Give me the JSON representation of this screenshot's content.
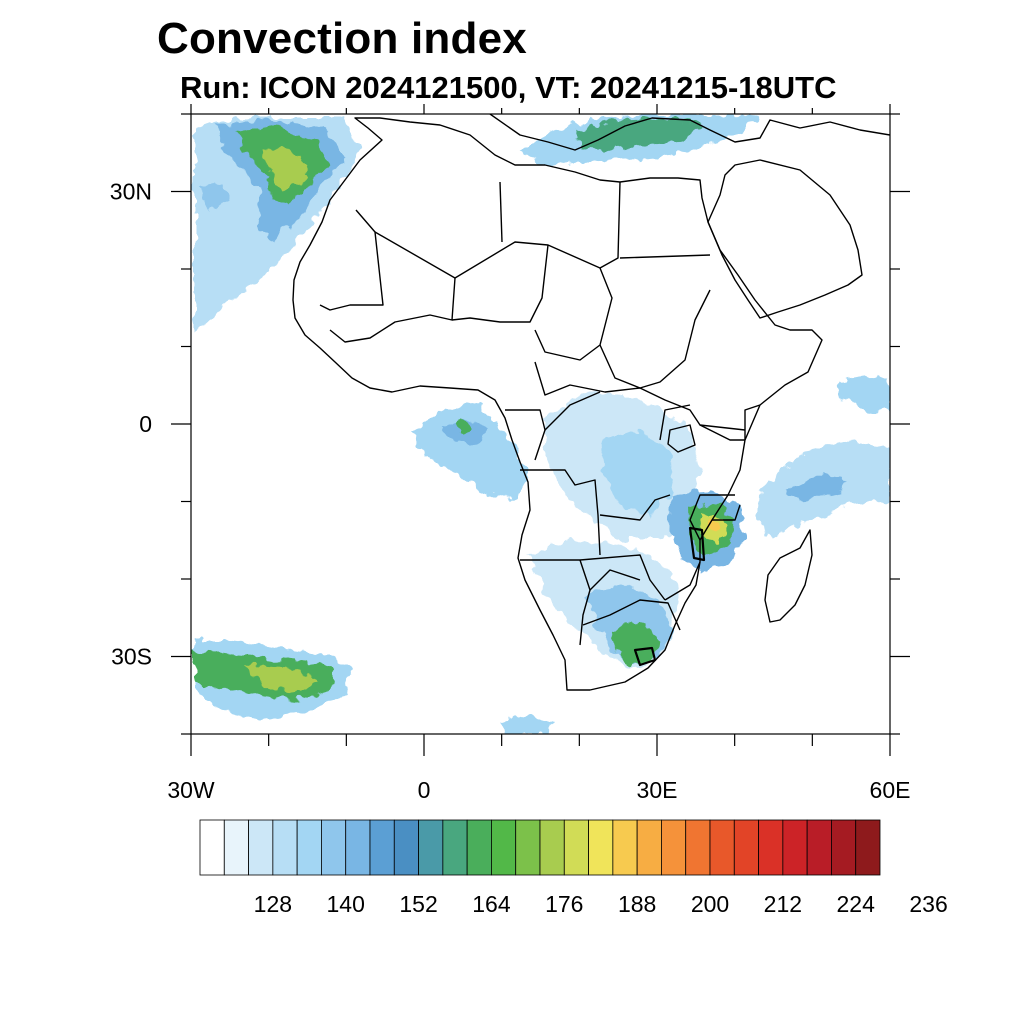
{
  "title": "Convection index",
  "subtitle": "Run: ICON 2024121500,  VT: 20241215-18UTC",
  "axes": {
    "lon_range": [
      -30,
      60
    ],
    "lat_range": [
      -40,
      40
    ],
    "x_tick_labels": [
      {
        "lon": -30,
        "label": "30W"
      },
      {
        "lon": 0,
        "label": "0"
      },
      {
        "lon": 30,
        "label": "30E"
      },
      {
        "lon": 60,
        "label": "60E"
      }
    ],
    "y_tick_labels": [
      {
        "lat": 30,
        "label": "30N"
      },
      {
        "lat": 0,
        "label": "0"
      },
      {
        "lat": -30,
        "label": "30S"
      }
    ]
  },
  "colorbar": {
    "colors": [
      "#ffffff",
      "#e8f4fb",
      "#cce7f7",
      "#b7def5",
      "#a3d6f3",
      "#8fc6ec",
      "#79b6e4",
      "#5b9fd4",
      "#4a8fc3",
      "#4a9aa8",
      "#49a77f",
      "#4aae5b",
      "#52b848",
      "#7cc14a",
      "#a8cc4f",
      "#d1dc56",
      "#f0e45a",
      "#f7ca4f",
      "#f7ad43",
      "#f5923a",
      "#f07531",
      "#e8582a",
      "#e24427",
      "#da3127",
      "#cc2327",
      "#b91d27",
      "#a51b22",
      "#8e1a1c"
    ],
    "labels": [
      "128",
      "140",
      "152",
      "164",
      "176",
      "188",
      "200",
      "212",
      "224",
      "236"
    ]
  },
  "fields": [
    {
      "region": "North Atlantic off Morocco",
      "lon": -18,
      "lat": 30,
      "level": "moderate"
    },
    {
      "region": "Gulf of Guinea",
      "lon": 2,
      "lat": -3,
      "level": "low"
    },
    {
      "region": "Lake Malawi / Mozambique",
      "lon": 35,
      "lat": -14,
      "level": "high"
    },
    {
      "region": "Eastern South Africa",
      "lon": 28,
      "lat": -29,
      "level": "moderate"
    },
    {
      "region": "South Atlantic",
      "lon": -22,
      "lat": -32,
      "level": "moderate"
    },
    {
      "region": "Mediterranean",
      "lon": 23,
      "lat": 37,
      "level": "moderate"
    },
    {
      "region": "Indian Ocean",
      "lon": 50,
      "lat": -8,
      "level": "low"
    }
  ]
}
